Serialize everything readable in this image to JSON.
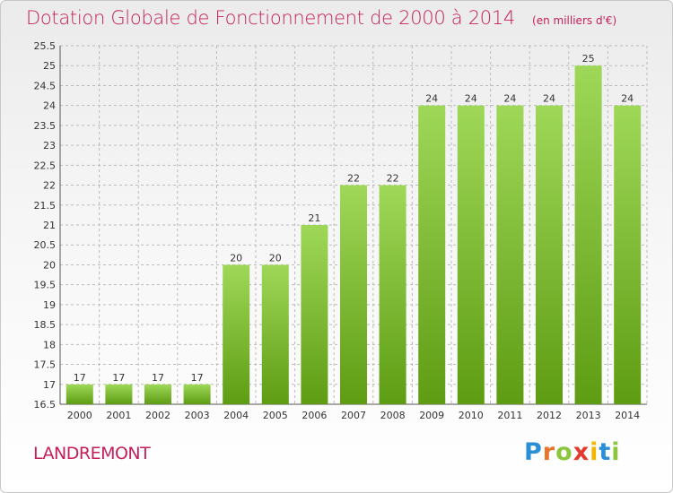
{
  "header": {
    "title": "Dotation Globale de Fonctionnement de 2000 à 2014",
    "unit": "(en milliers d'€)"
  },
  "footer": {
    "commune": "LANDREMONT",
    "logo": "Proxiti"
  },
  "colors": {
    "title": "#c41f5a",
    "bar_top": "#9fd858",
    "bar_bottom": "#5e9c13",
    "grid": "#bbbbbb"
  },
  "chart_data": {
    "type": "bar",
    "title": "Dotation Globale de Fonctionnement de 2000 à 2014",
    "subtitle": "(en milliers d'€)",
    "xlabel": "",
    "ylabel": "",
    "categories": [
      "2000",
      "2001",
      "2002",
      "2003",
      "2004",
      "2005",
      "2006",
      "2007",
      "2008",
      "2009",
      "2010",
      "2011",
      "2012",
      "2013",
      "2014"
    ],
    "values": [
      17,
      17,
      17,
      17,
      20,
      20,
      21,
      22,
      22,
      24,
      24,
      24,
      24,
      25,
      24
    ],
    "ylim": [
      16.5,
      25.5
    ],
    "yticks": [
      16.5,
      17,
      17.5,
      18,
      18.5,
      19,
      19.5,
      20,
      20.5,
      21,
      21.5,
      22,
      22.5,
      23,
      23.5,
      24,
      24.5,
      25,
      25.5
    ],
    "grid": true,
    "legend": "none"
  }
}
